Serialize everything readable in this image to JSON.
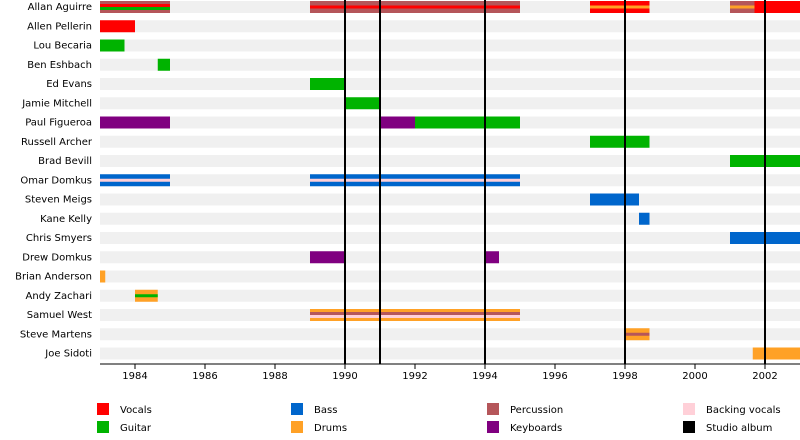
{
  "chart_data": {
    "type": "timeline",
    "xlim": [
      1983,
      2003
    ],
    "xticks": [
      1984,
      1986,
      1988,
      1990,
      1992,
      1994,
      1996,
      1998,
      2000,
      2002
    ],
    "roles": [
      {
        "name": "Vocals",
        "color": "#ff0000"
      },
      {
        "name": "Guitar",
        "color": "#00b300"
      },
      {
        "name": "Bass",
        "color": "#0066cc"
      },
      {
        "name": "Drums",
        "color": "#ffa126"
      },
      {
        "name": "Percussion",
        "color": "#b5565a"
      },
      {
        "name": "Keyboards",
        "color": "#800080"
      },
      {
        "name": "Backing vocals",
        "color": "#ffd0d8"
      }
    ],
    "studio_albums": {
      "name": "Studio album",
      "color": "#000000",
      "x": [
        1990,
        1991,
        1994,
        1998,
        2002
      ]
    },
    "members": [
      {
        "name": "Allan Aguirre",
        "bars": [
          {
            "start": 1983,
            "end": 1985,
            "role": "Percussion",
            "secondary": [
              "Vocals",
              "Guitar"
            ]
          },
          {
            "start": 1989,
            "end": 1995,
            "role": "Percussion",
            "secondary": [
              "Vocals"
            ]
          },
          {
            "start": 1997,
            "end": 1998.7,
            "role": "Vocals",
            "secondary": [
              "Drums"
            ]
          },
          {
            "start": 2001,
            "end": 2001.7,
            "role": "Percussion",
            "secondary": [
              "Drums"
            ]
          },
          {
            "start": 2001.7,
            "end": 2003,
            "role": "Vocals"
          }
        ]
      },
      {
        "name": "Allen Pellerin",
        "bars": [
          {
            "start": 1983,
            "end": 1984,
            "role": "Vocals"
          }
        ]
      },
      {
        "name": "Lou Becaria",
        "bars": [
          {
            "start": 1983,
            "end": 1983.7,
            "role": "Guitar"
          }
        ]
      },
      {
        "name": "Ben Eshbach",
        "bars": [
          {
            "start": 1984.65,
            "end": 1985,
            "role": "Guitar"
          }
        ]
      },
      {
        "name": "Ed Evans",
        "bars": [
          {
            "start": 1989,
            "end": 1990,
            "role": "Guitar"
          }
        ]
      },
      {
        "name": "Jamie Mitchell",
        "bars": [
          {
            "start": 1990,
            "end": 1991,
            "role": "Guitar"
          }
        ]
      },
      {
        "name": "Paul Figueroa",
        "bars": [
          {
            "start": 1983,
            "end": 1985,
            "role": "Keyboards"
          },
          {
            "start": 1991,
            "end": 1992,
            "role": "Keyboards"
          },
          {
            "start": 1992,
            "end": 1995,
            "role": "Guitar"
          }
        ]
      },
      {
        "name": "Russell Archer",
        "bars": [
          {
            "start": 1997,
            "end": 1998.7,
            "role": "Guitar"
          }
        ]
      },
      {
        "name": "Brad Bevill",
        "bars": [
          {
            "start": 2001,
            "end": 2003,
            "role": "Guitar"
          }
        ]
      },
      {
        "name": "Omar Domkus",
        "bars": [
          {
            "start": 1983,
            "end": 1985,
            "role": "Bass",
            "secondary": [
              "Backing vocals"
            ]
          },
          {
            "start": 1989,
            "end": 1995,
            "role": "Bass",
            "secondary": [
              "Backing vocals"
            ]
          }
        ]
      },
      {
        "name": "Steven Meigs",
        "bars": [
          {
            "start": 1997,
            "end": 1998.4,
            "role": "Bass"
          }
        ]
      },
      {
        "name": "Kane Kelly",
        "bars": [
          {
            "start": 1998.4,
            "end": 1998.7,
            "role": "Bass"
          }
        ]
      },
      {
        "name": "Chris Smyers",
        "bars": [
          {
            "start": 2001,
            "end": 2003,
            "role": "Bass"
          }
        ]
      },
      {
        "name": "Drew Domkus",
        "bars": [
          {
            "start": 1989,
            "end": 1990,
            "role": "Keyboards"
          },
          {
            "start": 1994,
            "end": 1994.4,
            "role": "Keyboards"
          }
        ]
      },
      {
        "name": "Brian Anderson",
        "bars": [
          {
            "start": 1983,
            "end": 1983.15,
            "role": "Drums"
          }
        ]
      },
      {
        "name": "Andy Zachari",
        "bars": [
          {
            "start": 1984,
            "end": 1984.65,
            "role": "Drums",
            "secondary": [
              "Guitar"
            ]
          }
        ]
      },
      {
        "name": "Samuel West",
        "bars": [
          {
            "start": 1989,
            "end": 1995,
            "role": "Drums",
            "secondary": [
              "Percussion",
              "Backing vocals"
            ]
          }
        ]
      },
      {
        "name": "Steve Martens",
        "bars": [
          {
            "start": 1998,
            "end": 1998.7,
            "role": "Drums",
            "secondary": [
              "Percussion"
            ]
          }
        ]
      },
      {
        "name": "Joe Sidoti",
        "bars": [
          {
            "start": 2001.65,
            "end": 2003,
            "role": "Drums"
          }
        ]
      }
    ]
  }
}
